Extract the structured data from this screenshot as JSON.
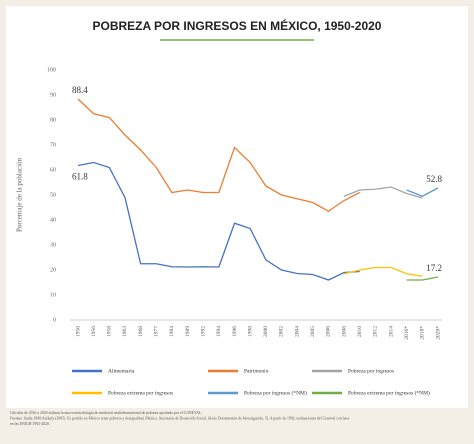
{
  "chart_data": {
    "type": "line",
    "title": "POBREZA POR INGRESOS EN MÉXICO, 1950-2020",
    "y_label": "Porcentaje de la población",
    "categories": [
      "1950",
      "1956",
      "1958",
      "1963",
      "1968",
      "1977",
      "1984",
      "1989",
      "1992",
      "1994",
      "1996",
      "1998",
      "2000",
      "2002",
      "2004",
      "2005",
      "2006",
      "2008",
      "2010",
      "2012",
      "2014",
      "2016*",
      "2018*",
      "2020*"
    ],
    "ylim": [
      0,
      100
    ],
    "yticks": [
      0,
      10,
      20,
      30,
      40,
      50,
      60,
      70,
      80,
      90,
      100
    ],
    "grid": false,
    "series": [
      {
        "name": "Alimentaria",
        "color": "#4472c4",
        "values": [
          61.8,
          63,
          61,
          49,
          22.5,
          22.5,
          21.3,
          21.2,
          21.3,
          21.2,
          38.7,
          36.6,
          24.1,
          20,
          18.6,
          18.2,
          16,
          19,
          19.4,
          null,
          null,
          null,
          null,
          null
        ]
      },
      {
        "name": "Patrimonio",
        "color": "#ed7d31",
        "values": [
          88.4,
          82.5,
          81,
          74,
          68,
          61,
          51,
          52,
          51,
          51,
          69,
          63,
          53.6,
          50,
          48.5,
          47,
          43.5,
          47.8,
          51,
          null,
          null,
          null,
          null,
          null
        ]
      },
      {
        "name": "Pobreza por ingresos",
        "color": "#a5a5a5",
        "values": [
          null,
          null,
          null,
          null,
          null,
          null,
          null,
          null,
          null,
          null,
          null,
          null,
          null,
          null,
          null,
          null,
          null,
          49.5,
          52,
          52.3,
          53.2,
          50.6,
          48.8,
          null
        ]
      },
      {
        "name": "Pobreza extrema por ingresos",
        "color": "#ffc000",
        "values": [
          null,
          null,
          null,
          null,
          null,
          null,
          null,
          null,
          null,
          null,
          null,
          null,
          null,
          null,
          null,
          null,
          null,
          18.5,
          20,
          21,
          21,
          18.5,
          17.5,
          null
        ]
      },
      {
        "name": "Pobreza por ingresos (*NM)",
        "color": "#5b9bd5",
        "values": [
          null,
          null,
          null,
          null,
          null,
          null,
          null,
          null,
          null,
          null,
          null,
          null,
          null,
          null,
          null,
          null,
          null,
          null,
          null,
          null,
          null,
          52,
          49.5,
          52.8
        ]
      },
      {
        "name": "Pobreza extrema por ingresos (*NM)",
        "color": "#70ad47",
        "values": [
          null,
          null,
          null,
          null,
          null,
          null,
          null,
          null,
          null,
          null,
          null,
          null,
          null,
          null,
          null,
          null,
          null,
          null,
          null,
          null,
          null,
          16,
          16,
          17.2
        ]
      }
    ],
    "notes": [
      "Cálculos de 2016 a 2020 utilizan la nueva metodología de medición multidimensional de pobreza aprobada por el CONEVAL.",
      "Fuentes: Stalia 1980-Székely (2005). Es posible en México tener pobreza y desigualdad, México, Secretaría de Desarrollo Social, (Serie Documentos de Investigación, 5). A partir de 1992, estimaciones del Coneval con base",
      "en las ENIGH 1992-2020."
    ]
  }
}
